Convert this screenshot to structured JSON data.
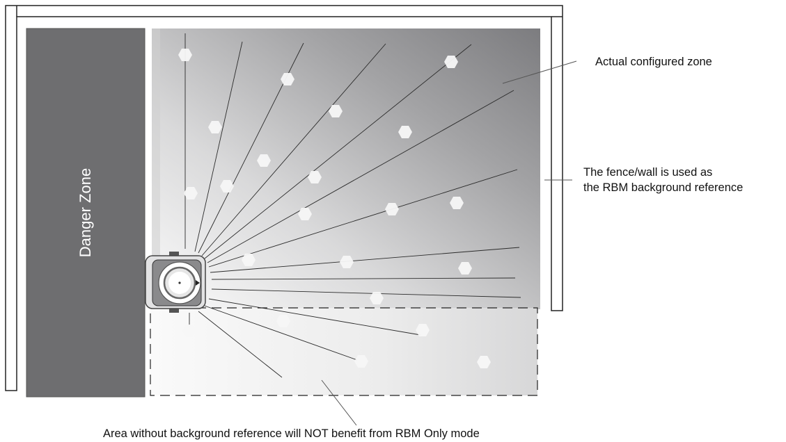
{
  "labels": {
    "danger_zone": "Danger Zone",
    "configured_zone": "Actual configured zone",
    "fence_line1": "The fence/wall is used as",
    "fence_line2": "the RBM background reference",
    "no_reference_area": "Area without background reference will NOT benefit from RBM Only mode"
  },
  "colors": {
    "danger_zone_fill": "#6e6e70",
    "zone_dark": "#7d7d80",
    "zone_light": "#f4f4f4",
    "fence_stroke": "#222222",
    "sensor_body": "#8a8a8c"
  }
}
